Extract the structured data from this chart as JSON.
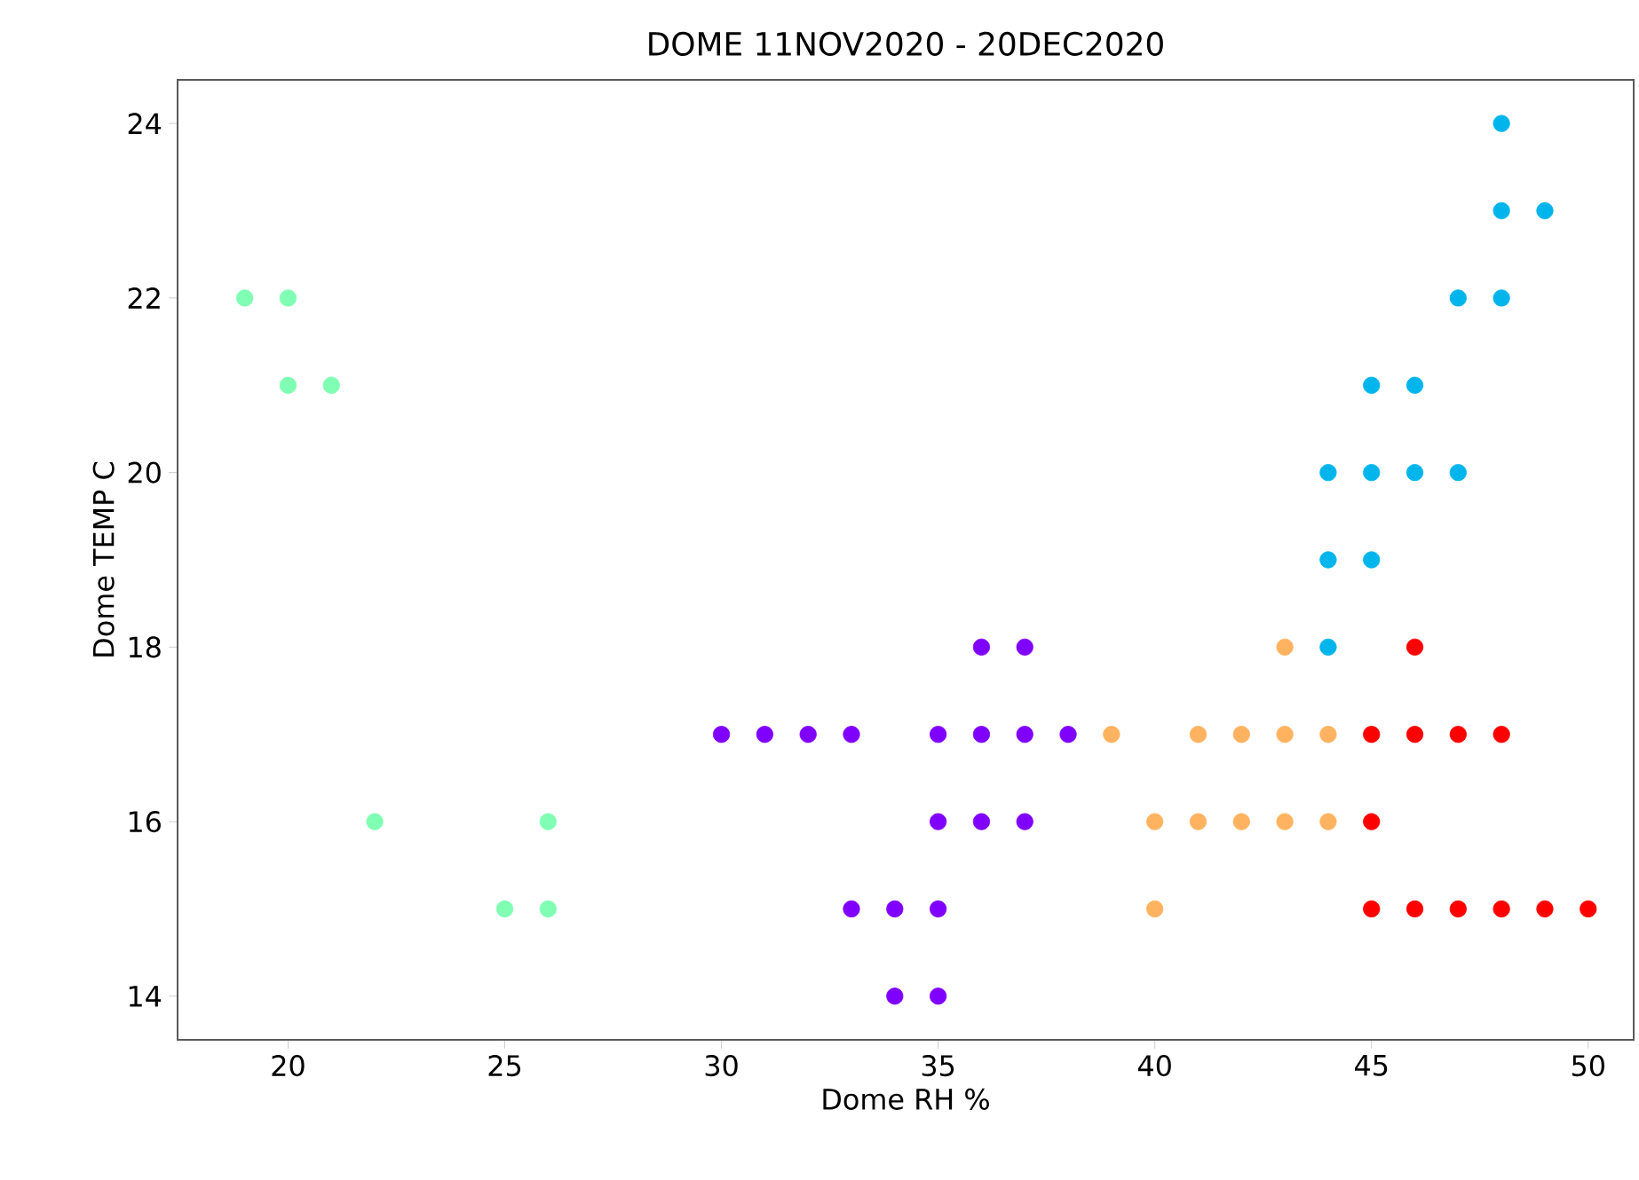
{
  "chart_data": {
    "type": "scatter",
    "title": "DOME 11NOV2020 - 20DEC2020",
    "xlabel": "Dome RH %",
    "ylabel": "Dome TEMP C",
    "xlim": [
      17.45,
      51.05
    ],
    "ylim": [
      13.5,
      24.5
    ],
    "xticks": [
      20,
      25,
      30,
      35,
      40,
      45,
      50
    ],
    "yticks": [
      14,
      16,
      18,
      20,
      22,
      24
    ],
    "marker": "circle",
    "series": [
      {
        "color": "#80ffb4",
        "x": [
          19,
          20,
          20,
          21,
          22,
          26,
          25,
          26
        ],
        "values": [
          22,
          22,
          21,
          21,
          16,
          16,
          15,
          15
        ]
      },
      {
        "color": "#8000ff",
        "x": [
          30,
          31,
          32,
          33,
          35,
          36,
          37,
          38,
          36,
          37,
          35,
          36,
          37,
          33,
          34,
          35,
          34,
          35
        ],
        "values": [
          17,
          17,
          17,
          17,
          17,
          17,
          17,
          17,
          18,
          18,
          16,
          16,
          16,
          15,
          15,
          15,
          14,
          14
        ]
      },
      {
        "color": "#ffb360",
        "x": [
          39,
          41,
          42,
          43,
          44,
          40,
          41,
          42,
          43,
          44,
          40,
          43
        ],
        "values": [
          17,
          17,
          17,
          17,
          17,
          16,
          16,
          16,
          16,
          16,
          15,
          18
        ]
      },
      {
        "color": "#00b5eb",
        "x": [
          48,
          48,
          49,
          47,
          48,
          45,
          46,
          44,
          45,
          46,
          47,
          44,
          45,
          44
        ],
        "values": [
          24,
          23,
          23,
          22,
          22,
          21,
          21,
          20,
          20,
          20,
          20,
          19,
          19,
          18
        ]
      },
      {
        "color": "#ff0000",
        "x": [
          46,
          45,
          46,
          47,
          48,
          45,
          45,
          46,
          47,
          48,
          49,
          50
        ],
        "values": [
          18,
          17,
          17,
          17,
          17,
          16,
          15,
          15,
          15,
          15,
          15,
          15
        ]
      }
    ]
  }
}
